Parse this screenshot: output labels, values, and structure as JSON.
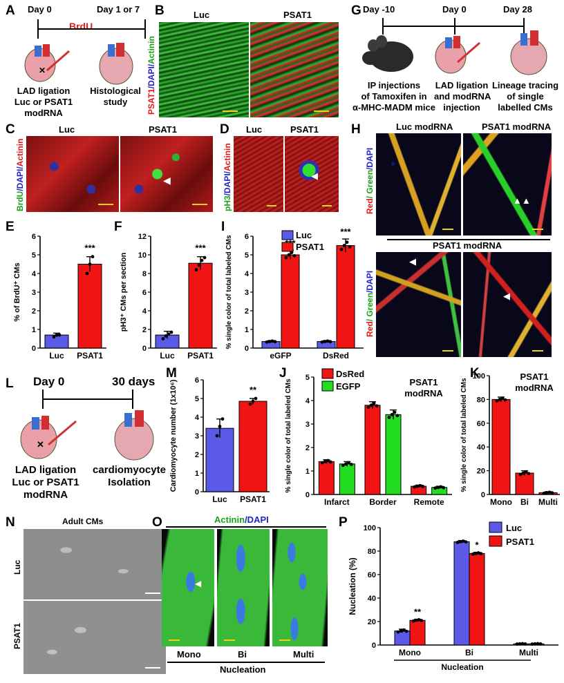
{
  "panels": {
    "A": {
      "letter": "A",
      "day0": "Day 0",
      "day1": "Day 1 or 7",
      "brdu": "BrdU",
      "left_caption": [
        "LAD ligation",
        "Luc or PSAT1",
        "modRNA"
      ],
      "right_caption": [
        "Histological",
        "study"
      ]
    },
    "B": {
      "letter": "B",
      "col1": "Luc",
      "col2": "PSAT1",
      "stain_red": "PSAT1",
      "stain_blue": "/DAPI/",
      "stain_green": "Actinin"
    },
    "C": {
      "letter": "C",
      "col1": "Luc",
      "col2": "PSAT1",
      "stain_green": "BrdU",
      "stain_blue": "/DAPI/",
      "stain_red": "Actinin"
    },
    "D": {
      "letter": "D",
      "col1": "Luc",
      "col2": "PSAT1",
      "stain_green": "pH3",
      "stain_blue": "/DAPI/",
      "stain_red": "Actinin"
    },
    "E": {
      "letter": "E",
      "sig": "***"
    },
    "F": {
      "letter": "F",
      "sig": "***"
    },
    "G": {
      "letter": "G",
      "day_m10": "Day -10",
      "day0": "Day 0",
      "day28": "Day 28",
      "cap1": [
        "IP injections",
        "of Tamoxifen in",
        "α-MHC-MADM mice"
      ],
      "cap2": [
        "LAD ligation",
        "and modRNA",
        "injection"
      ],
      "cap3": [
        "Lineage tracing",
        "of single",
        "labelled CMs"
      ]
    },
    "H": {
      "letter": "H",
      "col1": "Luc modRNA",
      "col2": "PSAT1 modRNA",
      "bottom_title": "PSAT1 modRNA",
      "stain_red": "Red",
      "stain_green": "/ Green",
      "stain_blue": "/DAPI"
    },
    "I": {
      "letter": "I",
      "sig1": "***",
      "sig2": "***"
    },
    "J": {
      "letter": "J",
      "note": [
        "PSAT1",
        "modRNA"
      ]
    },
    "K": {
      "letter": "K",
      "note": [
        "PSAT1",
        "modRNA"
      ]
    },
    "L": {
      "letter": "L",
      "day0": "Day 0",
      "day30": "30 days",
      "cap1": [
        "LAD ligation",
        "Luc or PSAT1",
        "modRNA"
      ],
      "cap2": [
        "cardiomyocyte",
        "Isolation"
      ]
    },
    "M": {
      "letter": "M",
      "sig": "**"
    },
    "N": {
      "letter": "N",
      "title": "Adult CMs",
      "row1": "Luc",
      "row2": "PSAT1"
    },
    "O": {
      "letter": "O",
      "stain_green": "Actinin",
      "stain_blue": "/DAPI",
      "labels": [
        "Mono",
        "Bi",
        "Multi"
      ],
      "footer": "Nucleation"
    },
    "P": {
      "letter": "P",
      "sig1": "**",
      "sig2": "*"
    }
  },
  "colors": {
    "luc": "#5a5ae6",
    "psat1": "#f01414",
    "egfp": "#22dd22",
    "dsred": "#f01414"
  },
  "chart_data": [
    {
      "id": "E",
      "type": "bar",
      "categories": [
        "Luc",
        "PSAT1"
      ],
      "values": [
        0.7,
        4.5
      ],
      "errors": [
        0.1,
        0.4
      ],
      "points": [
        [
          0.6,
          0.7,
          0.7
        ],
        [
          4.0,
          4.5,
          4.9
        ]
      ],
      "ylabel": "% of BrdU⁺ CMs",
      "ylim": [
        0,
        6
      ],
      "yticks": [
        0,
        1,
        2,
        3,
        4,
        5,
        6
      ]
    },
    {
      "id": "F",
      "type": "bar",
      "categories": [
        "Luc",
        "PSAT1"
      ],
      "values": [
        1.4,
        9.1
      ],
      "errors": [
        0.4,
        0.7
      ],
      "points": [
        [
          1.0,
          1.3,
          1.5,
          1.7
        ],
        [
          8.4,
          8.9,
          9.4,
          9.7
        ]
      ],
      "ylabel": "pH3⁺ CMs per section",
      "ylim": [
        0,
        12
      ],
      "yticks": [
        0,
        2,
        4,
        6,
        8,
        10,
        12
      ]
    },
    {
      "id": "I",
      "type": "bar",
      "categories": [
        "eGFP",
        "DsRed"
      ],
      "series": [
        {
          "name": "Luc",
          "values": [
            0.35,
            0.35
          ],
          "errors": [
            0.05,
            0.05
          ]
        },
        {
          "name": "PSAT1",
          "values": [
            5.0,
            5.5
          ],
          "errors": [
            0.25,
            0.35
          ]
        }
      ],
      "ylabel": "% single color of total labeled CMs",
      "ylim": [
        0,
        6
      ],
      "yticks": [
        0,
        1,
        2,
        3,
        4,
        5,
        6
      ]
    },
    {
      "id": "J",
      "type": "bar",
      "categories": [
        "Infarct",
        "Border",
        "Remote"
      ],
      "series": [
        {
          "name": "DsRed",
          "values": [
            1.4,
            3.8,
            0.35
          ],
          "errors": [
            0.08,
            0.15,
            0.05
          ]
        },
        {
          "name": "EGFP",
          "values": [
            1.3,
            3.4,
            0.3
          ],
          "errors": [
            0.1,
            0.2,
            0.05
          ]
        }
      ],
      "ylabel": "% single color of total labeled CMs",
      "ylim": [
        0,
        5
      ],
      "yticks": [
        0,
        1,
        2,
        3,
        4,
        5
      ]
    },
    {
      "id": "K",
      "type": "bar",
      "categories": [
        "Mono",
        "Bi",
        "Multi"
      ],
      "values": [
        80,
        18,
        1.5
      ],
      "errors": [
        2,
        2,
        0.8
      ],
      "ylabel": "% single color of total labeled CMs",
      "ylim": [
        0,
        100
      ],
      "yticks": [
        0,
        20,
        40,
        60,
        80,
        100
      ]
    },
    {
      "id": "M",
      "type": "bar",
      "categories": [
        "Luc",
        "PSAT1"
      ],
      "values": [
        3.4,
        4.85
      ],
      "errors": [
        0.5,
        0.15
      ],
      "points": [
        [
          3.0,
          3.5,
          3.9
        ],
        [
          4.7,
          4.85,
          5.0
        ]
      ],
      "ylabel": "Cardiomyocyte number (1x10⁶)",
      "ylim": [
        0,
        6
      ],
      "yticks": [
        0,
        1,
        2,
        3,
        4,
        5,
        6
      ]
    },
    {
      "id": "P",
      "type": "bar",
      "categories": [
        "Mono",
        "Bi",
        "Multi"
      ],
      "series": [
        {
          "name": "Luc",
          "values": [
            12,
            88,
            1
          ],
          "errors": [
            1.5,
            1,
            0.3
          ]
        },
        {
          "name": "PSAT1",
          "values": [
            21,
            78,
            1
          ],
          "errors": [
            1,
            1,
            0.3
          ]
        }
      ],
      "ylabel": "Nucleation (%)",
      "xlabel": "Nucleation",
      "ylim": [
        0,
        100
      ],
      "yticks": [
        0,
        20,
        40,
        60,
        80,
        100
      ]
    }
  ]
}
